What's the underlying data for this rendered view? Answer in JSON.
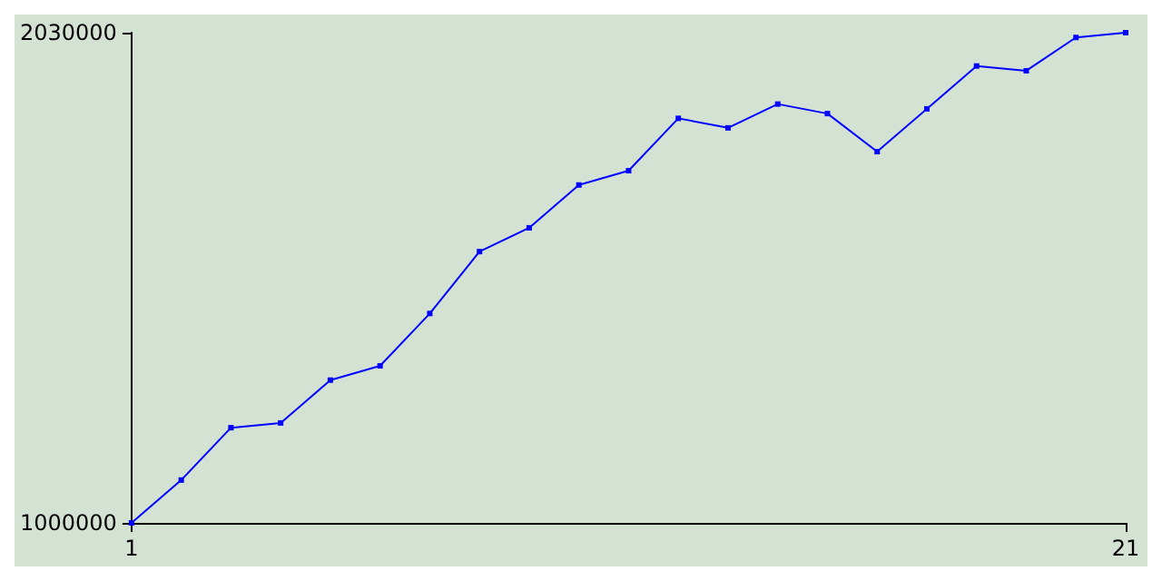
{
  "chart_data": {
    "type": "line",
    "x": [
      1,
      2,
      3,
      4,
      5,
      6,
      7,
      8,
      9,
      10,
      11,
      12,
      13,
      14,
      15,
      16,
      17,
      18,
      19,
      20,
      21
    ],
    "series": [
      {
        "color": "#0000ff",
        "values": [
          1000000,
          1090000,
          1200000,
          1210000,
          1300000,
          1330000,
          1440000,
          1570000,
          1620000,
          1710000,
          1740000,
          1850000,
          1830000,
          1880000,
          1860000,
          1780000,
          1870000,
          1960000,
          1950000,
          2020000,
          2030000
        ]
      }
    ],
    "xlim": [
      1,
      21
    ],
    "xticks": [
      1,
      21
    ],
    "ylim": [
      1000000,
      2030000
    ],
    "yticks": [
      1000000,
      2030000
    ],
    "grid": false,
    "marker": "square",
    "line_style": "solid"
  }
}
